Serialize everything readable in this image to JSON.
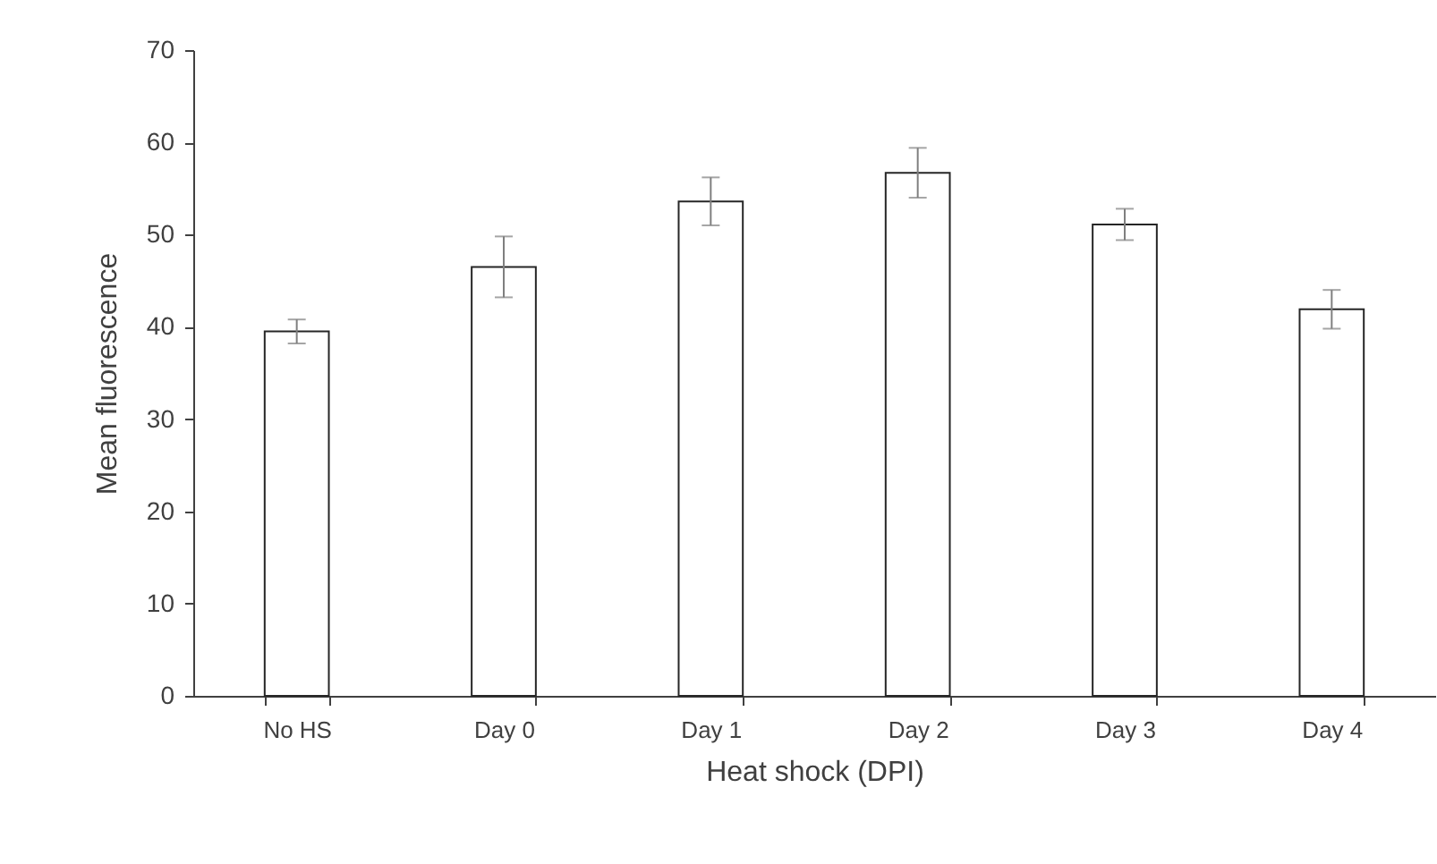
{
  "chart_data": {
    "type": "bar",
    "xlabel": "Heat shock (DPI)",
    "ylabel": "Mean fluorescence",
    "categories": [
      "No HS",
      "Day 0",
      "Day 1",
      "Day 2",
      "Day 3",
      "Day 4"
    ],
    "values": [
      39.5,
      46.5,
      53.6,
      56.7,
      51.1,
      41.9
    ],
    "errors": [
      1.3,
      3.3,
      2.6,
      2.7,
      1.7,
      2.1
    ],
    "color": "#ffffff",
    "ylim": [
      0,
      70
    ],
    "yticks": [
      0,
      10,
      20,
      30,
      40,
      50,
      60,
      70
    ],
    "grid": false
  }
}
